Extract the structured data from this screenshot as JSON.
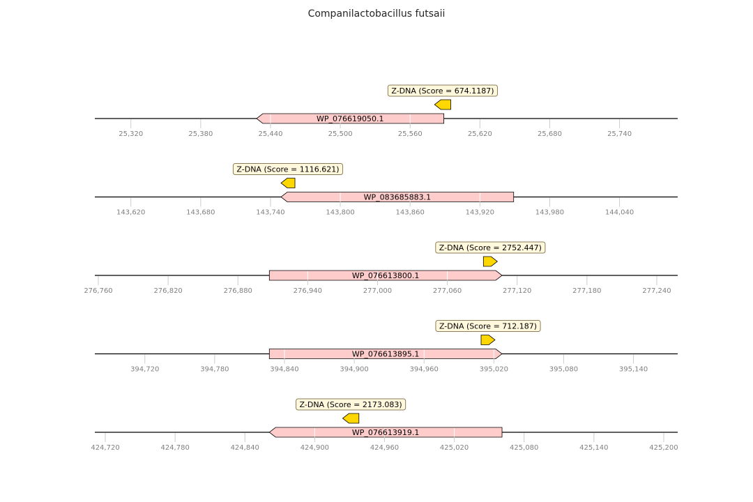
{
  "title": "Companilactobacillus futsaii",
  "colors": {
    "axis": "#000000",
    "gene_fill": "#ffcccc",
    "feature_fill": "#ffd700",
    "box_fill": "#fff8dc",
    "box_edge": "#8b7d5a",
    "tick_label": "#808080",
    "gridline": "#ffffff"
  },
  "chart_data": {
    "type": "gene_map",
    "tracks": [
      {
        "xlim": [
          25289,
          25790
        ],
        "ticks": [
          "25,320",
          "25,380",
          "25,440",
          "25,500",
          "25,560",
          "25,620",
          "25,680",
          "25,740"
        ],
        "tick_values": [
          25320,
          25380,
          25440,
          25500,
          25560,
          25620,
          25680,
          25740
        ],
        "gene": {
          "label": "WP_076619050.1",
          "start": 25589,
          "end": 25428,
          "strand": -1
        },
        "feature": {
          "label": "Z-DNA (Score = 674.1187)",
          "start": 25581,
          "end": 25595,
          "strand": -1
        }
      },
      {
        "xlim": [
          143589,
          144090
        ],
        "ticks": [
          "143,620",
          "143,680",
          "143,740",
          "143,800",
          "143,860",
          "143,920",
          "143,980",
          "144,040"
        ],
        "tick_values": [
          143620,
          143680,
          143740,
          143800,
          143860,
          143920,
          143980,
          144040
        ],
        "gene": {
          "label": "WP_083685883.1",
          "start": 143749,
          "end": 143949,
          "strand": -1
        },
        "feature": {
          "label": "Z-DNA (Score = 1116.621)",
          "start": 143749,
          "end": 143761,
          "strand": -1
        }
      },
      {
        "xlim": [
          276757,
          277258
        ],
        "ticks": [
          "276,760",
          "276,820",
          "276,880",
          "276,940",
          "277,000",
          "277,060",
          "277,120",
          "277,180",
          "277,240"
        ],
        "tick_values": [
          276760,
          276820,
          276880,
          276940,
          277000,
          277060,
          277120,
          277180,
          277240
        ],
        "gene": {
          "label": "WP_076613800.1",
          "start": 276907,
          "end": 277107,
          "strand": 1
        },
        "feature": {
          "label": "Z-DNA (Score = 2752.447)",
          "start": 277091,
          "end": 277103,
          "strand": 1
        }
      },
      {
        "xlim": [
          394677,
          395178
        ],
        "ticks": [
          "394,720",
          "394,780",
          "394,840",
          "394,900",
          "394,960",
          "395,020",
          "395,080",
          "395,140"
        ],
        "tick_values": [
          394720,
          394780,
          394840,
          394900,
          394960,
          395020,
          395080,
          395140
        ],
        "gene": {
          "label": "WP_076613895.1",
          "start": 394827,
          "end": 395027,
          "strand": 1
        },
        "feature": {
          "label": "Z-DNA (Score = 712.187)",
          "start": 395009,
          "end": 395021,
          "strand": 1
        }
      },
      {
        "xlim": [
          424711,
          425212
        ],
        "ticks": [
          "424,720",
          "424,780",
          "424,840",
          "424,900",
          "424,960",
          "425,020",
          "425,080",
          "425,140",
          "425,200"
        ],
        "tick_values": [
          424720,
          424780,
          424840,
          424900,
          424960,
          425020,
          425080,
          425140,
          425200
        ],
        "gene": {
          "label": "WP_076613919.1",
          "start": 424861,
          "end": 425061,
          "strand": -1
        },
        "feature": {
          "label": "Z-DNA (Score = 2173.083)",
          "start": 424924,
          "end": 424938,
          "strand": -1
        }
      }
    ]
  }
}
